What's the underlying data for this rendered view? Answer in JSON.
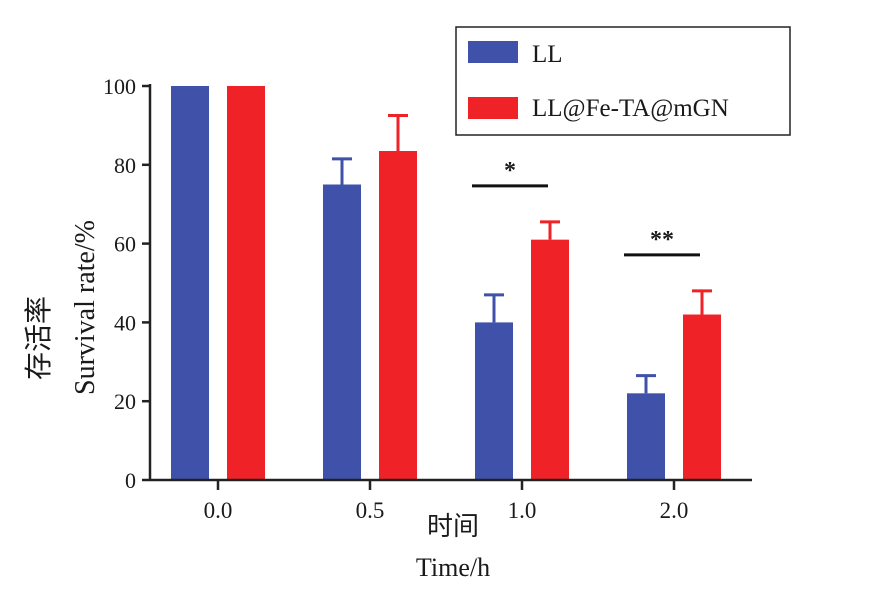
{
  "chart_data": {
    "type": "bar",
    "categories": [
      "0.0",
      "0.5",
      "1.0",
      "2.0"
    ],
    "series": [
      {
        "name": "LL",
        "values": [
          100,
          75,
          40,
          22
        ],
        "errors": [
          0,
          6.5,
          7,
          4.5
        ],
        "color": "#3f51a8"
      },
      {
        "name": "LL@Fe-TA@mGN",
        "values": [
          100,
          83.5,
          61,
          42
        ],
        "errors": [
          0,
          9,
          4.5,
          6
        ],
        "color": "#ee2227"
      }
    ],
    "ylim": [
      0,
      100
    ],
    "yticks": [
      "0",
      "20",
      "40",
      "60",
      "80",
      "100"
    ],
    "ylabel_cn": "存活率",
    "ylabel_en": "Survival rate/%",
    "xlabel_cn": "时间",
    "xlabel_en": "Time/h",
    "significance": [
      {
        "category": "1.0",
        "label": "*"
      },
      {
        "category": "2.0",
        "label": "**"
      }
    ],
    "legend_position": "top-right"
  }
}
